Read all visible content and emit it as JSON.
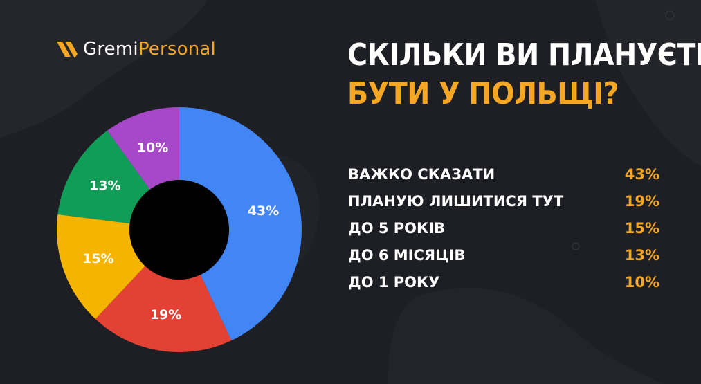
{
  "brand": {
    "name_part1": "Gremi",
    "name_part2": "Personal"
  },
  "title": {
    "line1": "СКІЛЬКИ ВИ ПЛАНУЄТЕ",
    "line2": "БУТИ У ПОЛЬЩІ?"
  },
  "colors": {
    "background": "#1e1f24",
    "accent": "#f5a623",
    "text": "#ffffff"
  },
  "legend": [
    {
      "label": "ВАЖКО СКАЗАТИ",
      "value": "43%"
    },
    {
      "label": "ПЛАНУЮ ЛИШИТИСЯ ТУТ",
      "value": "19%"
    },
    {
      "label": "ДО 5 РОКІВ",
      "value": "15%"
    },
    {
      "label": "ДО 6 МІСЯЦІВ",
      "value": "13%"
    },
    {
      "label": "ДО 1 РОКУ",
      "value": "10%"
    }
  ],
  "chart_data": {
    "type": "pie",
    "donut": true,
    "title": "СКІЛЬКИ ВИ ПЛАНУЄТЕ БУТИ У ПОЛЬЩІ?",
    "categories": [
      "ВАЖКО СКАЗАТИ",
      "ПЛАНУЮ ЛИШИТИСЯ ТУТ",
      "ДО 5 РОКІВ",
      "ДО 6 МІСЯЦІВ",
      "ДО 1 РОКУ"
    ],
    "values": [
      43,
      19,
      15,
      13,
      10
    ],
    "labels": [
      "43%",
      "19%",
      "15%",
      "13%",
      "10%"
    ],
    "colors": [
      "#4285f4",
      "#e34133",
      "#f4b400",
      "#109d58",
      "#a648c8"
    ],
    "legend_position": "right"
  }
}
